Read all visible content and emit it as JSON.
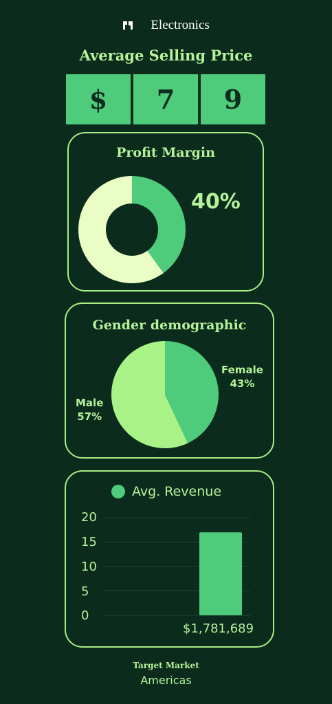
{
  "brand": {
    "name": "Electronics",
    "icon": "logo-icon"
  },
  "asp": {
    "title": "Average Selling Price",
    "digits": [
      "$",
      "7",
      "9"
    ]
  },
  "colors": {
    "background": "#0b2b1c",
    "accent": "#4ecb7b",
    "light": "#e9fdc5",
    "text": "#b6f29a",
    "male": "#a8f288"
  },
  "chart_data": [
    {
      "type": "pie",
      "variant": "donut",
      "title": "Profit Margin",
      "value_label": "40%",
      "values": [
        40,
        60
      ]
    },
    {
      "type": "pie",
      "title": "Gender demographic",
      "slices": [
        {
          "label": "Female",
          "value": 43,
          "value_label": "43%"
        },
        {
          "label": "Male",
          "value": 57,
          "value_label": "57%"
        }
      ]
    },
    {
      "type": "bar",
      "title": "",
      "legend": "Avg. Revenue",
      "legend_position": "top",
      "categories": [
        "$1,781,689"
      ],
      "values": [
        17
      ],
      "ylim": [
        0,
        20
      ],
      "yticks": [
        "20",
        "15",
        "10",
        "5",
        "0"
      ],
      "grid": true
    }
  ],
  "footer": {
    "label": "Target Market",
    "value": "Americas"
  }
}
